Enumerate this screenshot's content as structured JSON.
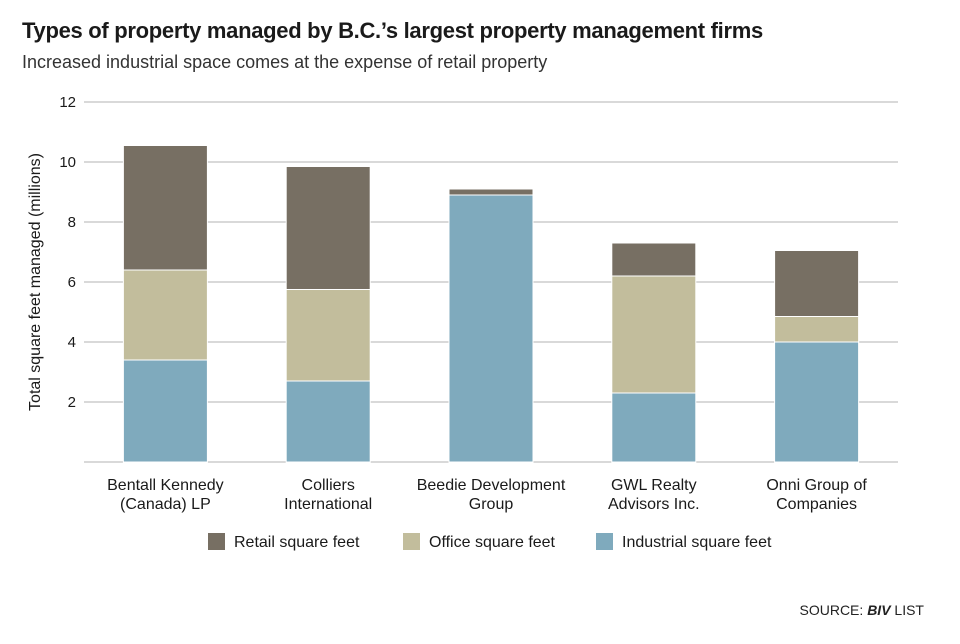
{
  "title": "Types of property managed by B.C.’s largest property management firms",
  "subtitle": "Increased industrial space comes at the expense of retail property",
  "source": {
    "prefix": "SOURCE: ",
    "publication": "BIV",
    "suffix": " LIST"
  },
  "colors": {
    "retail": "#776f63",
    "office": "#c2bd9c",
    "industrial": "#7faabd",
    "grid": "#b3b3b3",
    "text": "#1a1a1a"
  },
  "chart_data": {
    "type": "bar",
    "stacked": true,
    "ylabel": "Total square feet managed (millions)",
    "ylim": [
      0,
      12
    ],
    "yticks": [
      2,
      4,
      6,
      8,
      10,
      12
    ],
    "categories": [
      "Bentall Kennedy (Canada) LP",
      "Colliers International",
      "Beedie Development Group",
      "GWL Realty Advisors Inc.",
      "Onni Group of Companies"
    ],
    "category_lines": [
      [
        "Bentall Kennedy",
        "(Canada) LP"
      ],
      [
        "Colliers",
        "International"
      ],
      [
        "Beedie Development",
        "Group"
      ],
      [
        "GWL Realty",
        "Advisors Inc."
      ],
      [
        "Onni Group of",
        "Companies"
      ]
    ],
    "series": [
      {
        "name": "Industrial square feet",
        "color_key": "industrial",
        "values": [
          3.4,
          2.7,
          8.9,
          2.3,
          4.0
        ]
      },
      {
        "name": "Office square feet",
        "color_key": "office",
        "values": [
          3.0,
          3.05,
          0.0,
          3.9,
          0.85
        ]
      },
      {
        "name": "Retail square feet",
        "color_key": "retail",
        "values": [
          4.15,
          4.1,
          0.2,
          1.1,
          2.2
        ]
      }
    ],
    "legend_order": [
      "Retail square feet",
      "Office square feet",
      "Industrial square feet"
    ],
    "legend_position": "bottom",
    "grid": true
  }
}
